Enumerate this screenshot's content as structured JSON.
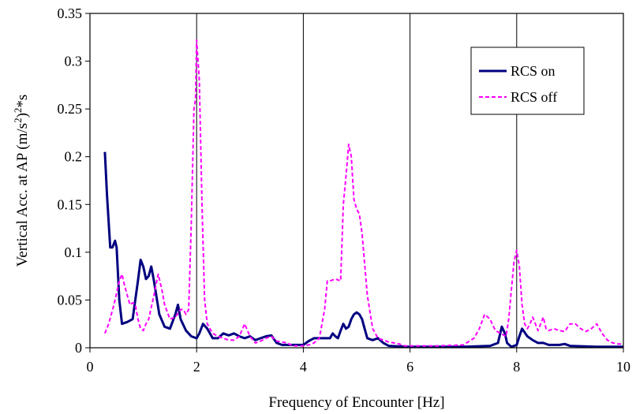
{
  "chart_data": {
    "type": "line",
    "title": "",
    "xlabel": "Frequency of Encounter [Hz]",
    "ylabel": "Vertical Acc. at AP (m/s²)²*s",
    "xlim": [
      0,
      10
    ],
    "ylim": [
      0,
      0.35
    ],
    "xticks": [
      0,
      2,
      4,
      6,
      8,
      10
    ],
    "yticks": [
      0,
      0.05,
      0.1,
      0.15,
      0.2,
      0.25,
      0.3,
      0.35
    ],
    "xtick_labels": [
      "0",
      "2",
      "4",
      "6",
      "8",
      "10"
    ],
    "ytick_labels": [
      "0",
      "0.05",
      "0.1",
      "0.15",
      "0.2",
      "0.25",
      "0.3",
      "0.35"
    ],
    "grid": "vertical",
    "legend_position": "top-right",
    "series": [
      {
        "name": "RCS on",
        "color": "#000080",
        "style": "solid",
        "points": [
          [
            0.28,
            0.205
          ],
          [
            0.32,
            0.16
          ],
          [
            0.38,
            0.105
          ],
          [
            0.42,
            0.105
          ],
          [
            0.47,
            0.112
          ],
          [
            0.5,
            0.105
          ],
          [
            0.55,
            0.05
          ],
          [
            0.6,
            0.025
          ],
          [
            0.7,
            0.027
          ],
          [
            0.8,
            0.03
          ],
          [
            0.9,
            0.07
          ],
          [
            0.95,
            0.092
          ],
          [
            1.0,
            0.085
          ],
          [
            1.05,
            0.072
          ],
          [
            1.1,
            0.075
          ],
          [
            1.15,
            0.085
          ],
          [
            1.2,
            0.07
          ],
          [
            1.3,
            0.035
          ],
          [
            1.4,
            0.022
          ],
          [
            1.5,
            0.02
          ],
          [
            1.6,
            0.035
          ],
          [
            1.65,
            0.045
          ],
          [
            1.7,
            0.03
          ],
          [
            1.8,
            0.018
          ],
          [
            1.9,
            0.012
          ],
          [
            2.0,
            0.01
          ],
          [
            2.05,
            0.015
          ],
          [
            2.12,
            0.025
          ],
          [
            2.2,
            0.02
          ],
          [
            2.3,
            0.01
          ],
          [
            2.4,
            0.01
          ],
          [
            2.5,
            0.015
          ],
          [
            2.6,
            0.013
          ],
          [
            2.7,
            0.015
          ],
          [
            2.8,
            0.012
          ],
          [
            2.9,
            0.01
          ],
          [
            3.0,
            0.012
          ],
          [
            3.1,
            0.008
          ],
          [
            3.2,
            0.01
          ],
          [
            3.3,
            0.012
          ],
          [
            3.4,
            0.013
          ],
          [
            3.5,
            0.005
          ],
          [
            3.6,
            0.003
          ],
          [
            3.8,
            0.003
          ],
          [
            4.0,
            0.003
          ],
          [
            4.1,
            0.007
          ],
          [
            4.2,
            0.01
          ],
          [
            4.3,
            0.01
          ],
          [
            4.4,
            0.01
          ],
          [
            4.5,
            0.01
          ],
          [
            4.55,
            0.015
          ],
          [
            4.6,
            0.012
          ],
          [
            4.65,
            0.01
          ],
          [
            4.7,
            0.018
          ],
          [
            4.75,
            0.025
          ],
          [
            4.8,
            0.02
          ],
          [
            4.85,
            0.022
          ],
          [
            4.9,
            0.03
          ],
          [
            4.95,
            0.035
          ],
          [
            5.0,
            0.037
          ],
          [
            5.05,
            0.035
          ],
          [
            5.1,
            0.03
          ],
          [
            5.15,
            0.02
          ],
          [
            5.2,
            0.01
          ],
          [
            5.3,
            0.008
          ],
          [
            5.4,
            0.01
          ],
          [
            5.5,
            0.005
          ],
          [
            5.6,
            0.002
          ],
          [
            6.0,
            0.001
          ],
          [
            6.5,
            0.001
          ],
          [
            7.0,
            0.001
          ],
          [
            7.5,
            0.002
          ],
          [
            7.65,
            0.005
          ],
          [
            7.72,
            0.022
          ],
          [
            7.78,
            0.015
          ],
          [
            7.82,
            0.005
          ],
          [
            7.9,
            0.001
          ],
          [
            8.0,
            0.003
          ],
          [
            8.05,
            0.012
          ],
          [
            8.1,
            0.02
          ],
          [
            8.2,
            0.012
          ],
          [
            8.3,
            0.008
          ],
          [
            8.4,
            0.005
          ],
          [
            8.5,
            0.005
          ],
          [
            8.6,
            0.003
          ],
          [
            8.8,
            0.003
          ],
          [
            8.9,
            0.004
          ],
          [
            9.0,
            0.002
          ],
          [
            9.5,
            0.001
          ],
          [
            10.0,
            0.001
          ]
        ]
      },
      {
        "name": "RCS off",
        "color": "#ff00ff",
        "style": "dashed",
        "points": [
          [
            0.28,
            0.015
          ],
          [
            0.35,
            0.025
          ],
          [
            0.45,
            0.045
          ],
          [
            0.55,
            0.07
          ],
          [
            0.6,
            0.077
          ],
          [
            0.65,
            0.065
          ],
          [
            0.7,
            0.055
          ],
          [
            0.75,
            0.045
          ],
          [
            0.8,
            0.047
          ],
          [
            0.85,
            0.045
          ],
          [
            0.9,
            0.03
          ],
          [
            0.95,
            0.02
          ],
          [
            1.0,
            0.018
          ],
          [
            1.05,
            0.025
          ],
          [
            1.1,
            0.03
          ],
          [
            1.2,
            0.055
          ],
          [
            1.28,
            0.077
          ],
          [
            1.35,
            0.06
          ],
          [
            1.4,
            0.045
          ],
          [
            1.5,
            0.03
          ],
          [
            1.6,
            0.032
          ],
          [
            1.7,
            0.04
          ],
          [
            1.75,
            0.04
          ],
          [
            1.8,
            0.035
          ],
          [
            1.85,
            0.04
          ],
          [
            1.9,
            0.13
          ],
          [
            1.95,
            0.25
          ],
          [
            1.98,
            0.26
          ],
          [
            2.0,
            0.322
          ],
          [
            2.05,
            0.28
          ],
          [
            2.1,
            0.15
          ],
          [
            2.15,
            0.05
          ],
          [
            2.2,
            0.025
          ],
          [
            2.3,
            0.015
          ],
          [
            2.4,
            0.012
          ],
          [
            2.5,
            0.01
          ],
          [
            2.6,
            0.008
          ],
          [
            2.7,
            0.008
          ],
          [
            2.8,
            0.012
          ],
          [
            2.9,
            0.025
          ],
          [
            3.0,
            0.012
          ],
          [
            3.1,
            0.005
          ],
          [
            3.2,
            0.007
          ],
          [
            3.3,
            0.01
          ],
          [
            3.4,
            0.012
          ],
          [
            3.5,
            0.007
          ],
          [
            3.6,
            0.006
          ],
          [
            3.7,
            0.005
          ],
          [
            3.8,
            0.002
          ],
          [
            4.0,
            0.002
          ],
          [
            4.1,
            0.003
          ],
          [
            4.2,
            0.005
          ],
          [
            4.3,
            0.01
          ],
          [
            4.4,
            0.04
          ],
          [
            4.45,
            0.07
          ],
          [
            4.5,
            0.07
          ],
          [
            4.6,
            0.072
          ],
          [
            4.7,
            0.07
          ],
          [
            4.75,
            0.15
          ],
          [
            4.8,
            0.18
          ],
          [
            4.85,
            0.213
          ],
          [
            4.9,
            0.2
          ],
          [
            4.95,
            0.155
          ],
          [
            5.0,
            0.145
          ],
          [
            5.05,
            0.14
          ],
          [
            5.1,
            0.12
          ],
          [
            5.2,
            0.055
          ],
          [
            5.3,
            0.02
          ],
          [
            5.4,
            0.01
          ],
          [
            5.5,
            0.008
          ],
          [
            5.6,
            0.006
          ],
          [
            5.7,
            0.005
          ],
          [
            5.8,
            0.004
          ],
          [
            5.9,
            0.002
          ],
          [
            6.0,
            0.002
          ],
          [
            6.5,
            0.002
          ],
          [
            7.0,
            0.003
          ],
          [
            7.2,
            0.01
          ],
          [
            7.3,
            0.02
          ],
          [
            7.4,
            0.035
          ],
          [
            7.5,
            0.03
          ],
          [
            7.6,
            0.018
          ],
          [
            7.7,
            0.015
          ],
          [
            7.8,
            0.012
          ],
          [
            7.85,
            0.03
          ],
          [
            7.9,
            0.06
          ],
          [
            7.95,
            0.09
          ],
          [
            8.0,
            0.102
          ],
          [
            8.05,
            0.085
          ],
          [
            8.1,
            0.045
          ],
          [
            8.15,
            0.025
          ],
          [
            8.2,
            0.02
          ],
          [
            8.25,
            0.025
          ],
          [
            8.3,
            0.032
          ],
          [
            8.35,
            0.025
          ],
          [
            8.4,
            0.018
          ],
          [
            8.45,
            0.025
          ],
          [
            8.5,
            0.032
          ],
          [
            8.55,
            0.02
          ],
          [
            8.6,
            0.018
          ],
          [
            8.7,
            0.02
          ],
          [
            8.8,
            0.018
          ],
          [
            8.9,
            0.017
          ],
          [
            9.0,
            0.025
          ],
          [
            9.1,
            0.025
          ],
          [
            9.2,
            0.02
          ],
          [
            9.3,
            0.017
          ],
          [
            9.4,
            0.02
          ],
          [
            9.5,
            0.025
          ],
          [
            9.6,
            0.015
          ],
          [
            9.7,
            0.008
          ],
          [
            9.8,
            0.005
          ],
          [
            9.9,
            0.004
          ],
          [
            10.0,
            0.004
          ]
        ]
      }
    ]
  }
}
